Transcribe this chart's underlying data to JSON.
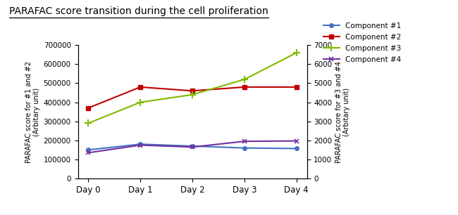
{
  "title": "PARAFAC score transition during the cell proliferation",
  "x_labels": [
    "Day 0",
    "Day 1",
    "Day 2",
    "Day 3",
    "Day 4"
  ],
  "x_values": [
    0,
    1,
    2,
    3,
    4
  ],
  "comp1": [
    150000,
    180000,
    170000,
    160000,
    157000
  ],
  "comp2": [
    370000,
    480000,
    460000,
    480000,
    480000
  ],
  "comp3": [
    2900,
    4000,
    4400,
    5200,
    6600
  ],
  "comp4": [
    1350,
    1750,
    1650,
    1950,
    1970
  ],
  "comp1_color": "#4472c4",
  "comp2_color": "#c00000",
  "comp3_color": "#7fba00",
  "comp4_color": "#7030a0",
  "ylabel_left": "PARAFAC score for #1 and #2\n(Arbitary unit)",
  "ylabel_right": "PARAFAC score for #3 and #4\n(Arbitary unit)",
  "ylim_left": [
    0,
    700000
  ],
  "ylim_right": [
    0,
    7000
  ],
  "yticks_left": [
    0,
    100000,
    200000,
    300000,
    400000,
    500000,
    600000,
    700000
  ],
  "yticks_right": [
    0,
    1000,
    2000,
    3000,
    4000,
    5000,
    6000,
    7000
  ],
  "legend_labels": [
    "Component #1",
    "Component #2",
    "Component #3",
    "Component #4"
  ],
  "background_color": "#ffffff",
  "figsize": [
    6.5,
    3.06
  ],
  "dpi": 100
}
